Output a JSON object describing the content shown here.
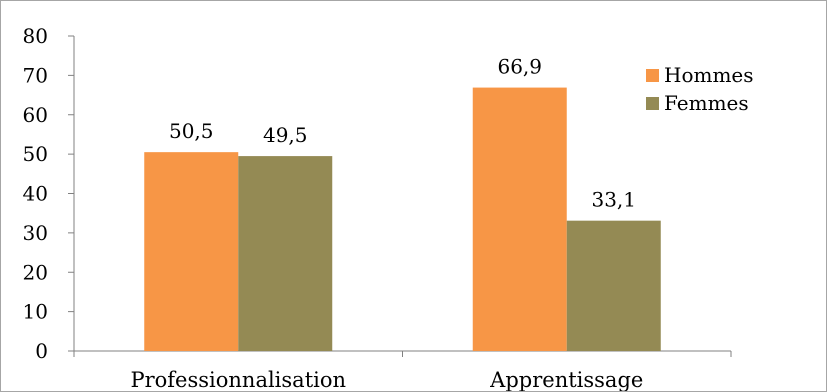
{
  "chart_data": {
    "type": "bar",
    "categories": [
      "Professionnalisation",
      "Apprentissage"
    ],
    "series": [
      {
        "name": "Hommes",
        "values": [
          50.5,
          66.9
        ],
        "color": "#f79646"
      },
      {
        "name": "Femmes",
        "values": [
          49.5,
          33.1
        ],
        "color": "#948a54"
      }
    ],
    "data_labels": [
      [
        "50,5",
        "66,9"
      ],
      [
        "49,5",
        "33,1"
      ]
    ],
    "ylim": [
      0,
      80
    ],
    "yticks": [
      0,
      10,
      20,
      30,
      40,
      50,
      60,
      70,
      80
    ],
    "grid": false,
    "legend_position": "right",
    "title": "",
    "xlabel": "",
    "ylabel": ""
  }
}
